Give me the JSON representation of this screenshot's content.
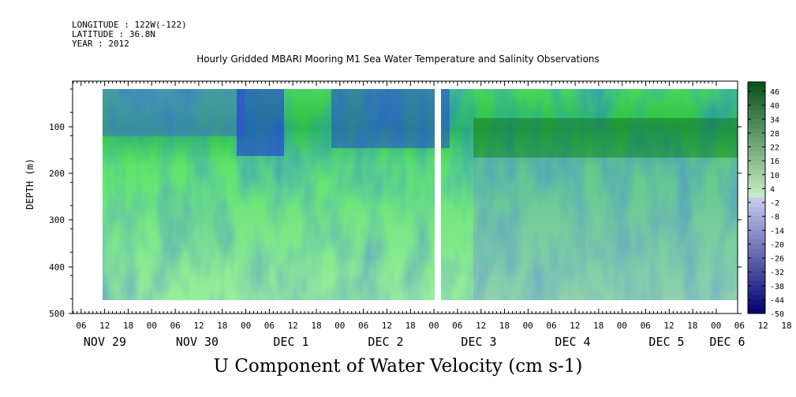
{
  "header": {
    "longitude": "LONGITUDE : 122W(-122)",
    "latitude": "LATITUDE : 36.8N",
    "year": "YEAR : 2012"
  },
  "chart_data": {
    "type": "heatmap",
    "title": "Hourly Gridded MBARI Mooring M1 Sea Water Temperature and Salinity Observations",
    "xlabel": "U Component of Water Velocity (cm s-1)",
    "ylabel": "DEPTH (m)",
    "ylim": [
      500,
      0
    ],
    "y_ticks": [
      100,
      200,
      300,
      400,
      500
    ],
    "hour_tick_labels": [
      "06",
      "12",
      "18",
      "00",
      "06",
      "12",
      "18",
      "00",
      "06",
      "12",
      "18",
      "00",
      "06",
      "12",
      "18",
      "00",
      "06",
      "12",
      "18",
      "00",
      "06",
      "12",
      "18",
      "00",
      "06",
      "12",
      "18",
      "00",
      "06",
      "12",
      "18",
      "00"
    ],
    "day_labels": [
      "NOV 29",
      "NOV 30",
      "DEC  1",
      "DEC  2",
      "DEC  3",
      "DEC  4",
      "DEC  5",
      "DEC  6"
    ],
    "colorbar": {
      "labels": [
        "46",
        "40",
        "34",
        "28",
        "22",
        "16",
        "10",
        "4",
        "-2",
        "-8",
        "-14",
        "-20",
        "-26",
        "-32",
        "-38",
        "-44",
        "-50"
      ],
      "range": [
        -50,
        50
      ]
    },
    "colors": {
      "negative": "#1a3fd6",
      "neutral": "#c8f0c8",
      "positive": "#0a5a1a"
    }
  }
}
